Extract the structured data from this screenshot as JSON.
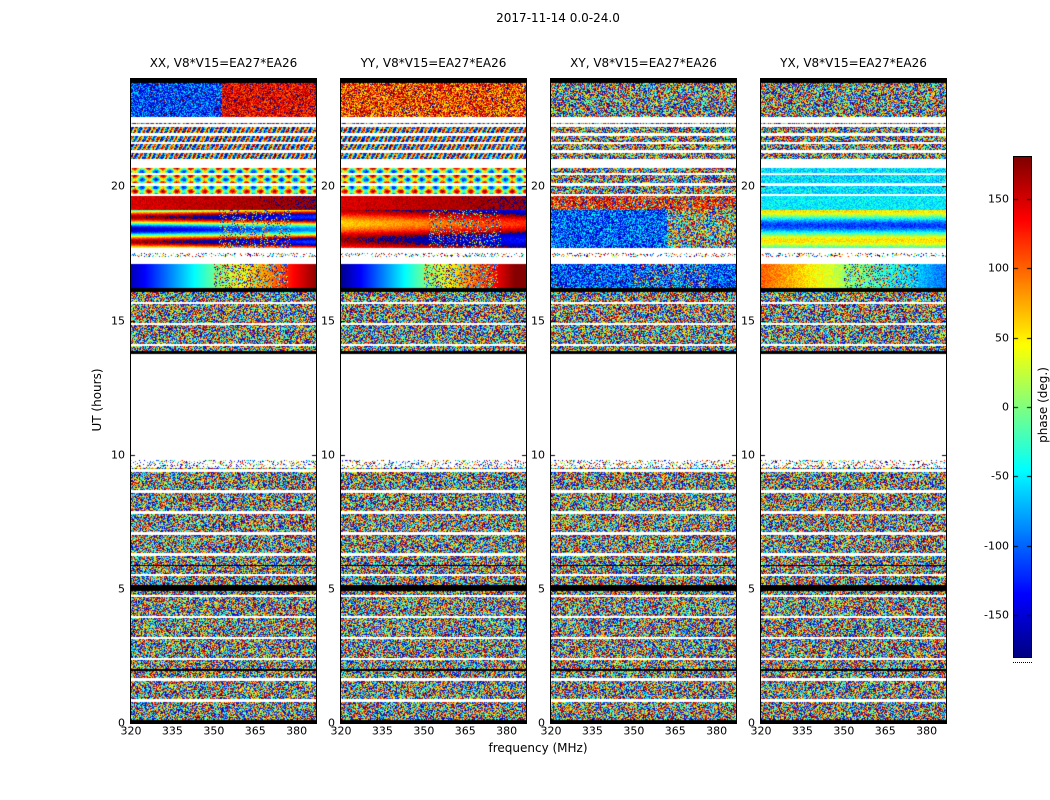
{
  "chart_data": {
    "type": "heatmap",
    "title": "2017-11-14 0.0-24.0",
    "xlabel": "frequency (MHz)",
    "ylabel": "UT (hours)",
    "xlim": [
      320,
      387
    ],
    "ylim": [
      0,
      24
    ],
    "x_ticks": [
      320,
      335,
      350,
      365,
      380
    ],
    "y_ticks": [
      0,
      5,
      10,
      15,
      20
    ],
    "grid": false,
    "panels": [
      {
        "title": "XX, V8*V15=EA27*EA26",
        "pol": "XX"
      },
      {
        "title": "YY, V8*V15=EA27*EA26",
        "pol": "YY"
      },
      {
        "title": "XY, V8*V15=EA27*EA26",
        "pol": "XY"
      },
      {
        "title": "YX, V8*V15=EA27*EA26",
        "pol": "YX"
      }
    ],
    "colorbar": {
      "label": "phase (deg.)",
      "ticks": [
        150,
        100,
        50,
        0,
        -50,
        -100,
        -150
      ],
      "vmin": -180,
      "vmax": 180,
      "colormap": "jet",
      "position": "right"
    },
    "bands": [
      {
        "ut0": 0.0,
        "ut1": 0.12,
        "type": "black",
        "note": "dark edge row at UT 0"
      },
      {
        "ut0": 0.12,
        "ut1": 4.92,
        "type": "scans",
        "note": "random phase noise scans separated by white gaps"
      },
      {
        "ut0": 4.92,
        "ut1": 5.15,
        "type": "black",
        "note": "dark band near UT 5"
      },
      {
        "ut0": 5.15,
        "ut1": 9.5,
        "type": "scans",
        "note": "random phase noise scans separated by white gaps"
      },
      {
        "ut0": 9.5,
        "ut1": 9.8,
        "type": "sparse",
        "note": "sparse speckled row"
      },
      {
        "ut0": 9.8,
        "ut1": 13.75,
        "type": "blank",
        "note": "no data (white)"
      },
      {
        "ut0": 13.75,
        "ut1": 13.88,
        "type": "black",
        "note": "thin dark line"
      },
      {
        "ut0": 13.88,
        "ut1": 16.05,
        "type": "scans",
        "note": "noise scans"
      },
      {
        "ut0": 16.05,
        "ut1": 16.2,
        "type": "black",
        "note": "thin dark line"
      },
      {
        "ut0": 16.2,
        "ut1": 17.1,
        "type": "smoothA",
        "note": "coherent phase gradient band, blue-to-red in XX/YY, noisy blue XY, orange-to-cyan YX"
      },
      {
        "ut0": 17.1,
        "ut1": 17.35,
        "type": "blank"
      },
      {
        "ut0": 17.35,
        "ut1": 17.5,
        "type": "sparse"
      },
      {
        "ut0": 17.5,
        "ut1": 17.7,
        "type": "blank"
      },
      {
        "ut0": 17.7,
        "ut1": 19.1,
        "type": "smoothB",
        "note": "strong alternating coherent red/blue rows in XX, red/orange in YY"
      },
      {
        "ut0": 19.1,
        "ut1": 19.65,
        "type": "smoothC",
        "note": "saturated red band in XX/YY, cyan in YX"
      },
      {
        "ut0": 19.65,
        "ut1": 20.7,
        "type": "pattern",
        "note": "striped yellow/green/cyan rows in XX/YY, noise in XY, cyan in YX"
      },
      {
        "ut0": 20.7,
        "ut1": 20.9,
        "type": "blank"
      },
      {
        "ut0": 20.9,
        "ut1": 22.35,
        "type": "thinscans",
        "note": "thin patterned noise rows"
      },
      {
        "ut0": 22.35,
        "ut1": 22.6,
        "type": "blank"
      },
      {
        "ut0": 22.6,
        "ut1": 23.85,
        "type": "top",
        "note": "noisy band: blue-left/red-right in XX, orange in YY, pure noise XY/YX"
      },
      {
        "ut0": 23.85,
        "ut1": 24.0,
        "type": "black",
        "note": "dark edge row at UT 24"
      }
    ]
  }
}
